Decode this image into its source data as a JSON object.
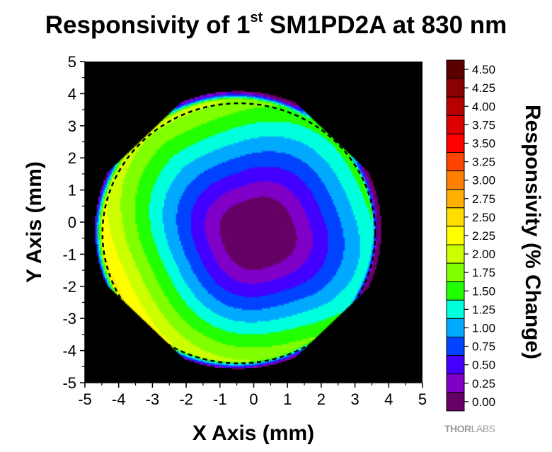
{
  "title": {
    "prefix": "Responsivity of 1",
    "sup": "st",
    "suffix": " SM1PD2A at 830 nm"
  },
  "chart_data": {
    "type": "heatmap",
    "subtype": "filled contour",
    "xlabel": "X Axis (mm)",
    "ylabel": "Y Axis (mm)",
    "zlabel": "Responsivity (% Change)",
    "xlim": [
      -5,
      5
    ],
    "ylim": [
      -5,
      5
    ],
    "xticks": [
      "-5",
      "-4",
      "-3",
      "-2",
      "-1",
      "0",
      "1",
      "2",
      "3",
      "4",
      "5"
    ],
    "yticks": [
      "5",
      "4",
      "3",
      "2",
      "1",
      "0",
      "-1",
      "-2",
      "-3",
      "-4",
      "-5"
    ],
    "background": "#000000",
    "levels": [
      "0.00",
      "0.25",
      "0.50",
      "0.75",
      "1.00",
      "1.25",
      "1.50",
      "1.75",
      "2.00",
      "2.25",
      "2.50",
      "2.75",
      "3.00",
      "3.25",
      "3.50",
      "3.75",
      "4.00",
      "4.25",
      "4.50"
    ],
    "colors": [
      "#660066",
      "#8000c8",
      "#4400ff",
      "#0044ff",
      "#00aaff",
      "#00ffdd",
      "#22ff00",
      "#80ff00",
      "#ccff00",
      "#ffff00",
      "#ffdd00",
      "#ffb000",
      "#ff8000",
      "#ff4400",
      "#ff0000",
      "#dd0000",
      "#b80000",
      "#8b0000",
      "#5a0000"
    ],
    "minimum_location": [
      0.1,
      -0.35
    ],
    "overlay": "dashed circle"
  },
  "logo": {
    "a": "THOR",
    "b": "LABS"
  }
}
